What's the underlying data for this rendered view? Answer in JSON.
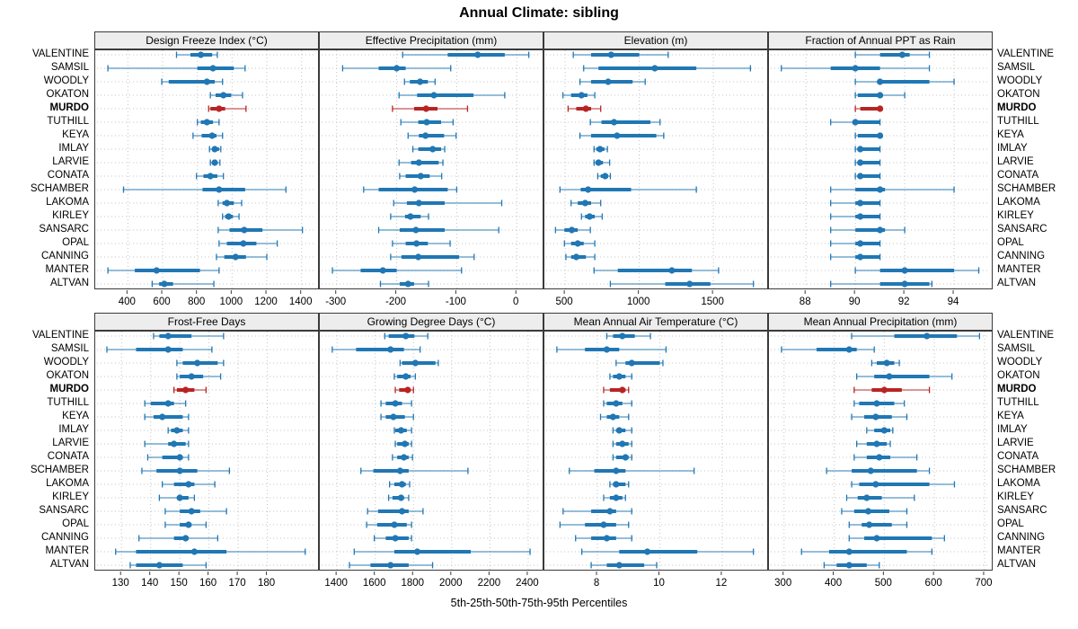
{
  "title": "Annual Climate: sibling",
  "caption": "5th-25th-50th-75th-95th Percentiles",
  "highlight_site": "MURDO",
  "colors": {
    "series": "#2077b4",
    "highlight": "#b82423",
    "grid": "#c4c4c4",
    "strip_bg": "#ededed",
    "border": "#3a3a3a"
  },
  "sites": [
    "VALENTINE",
    "SAMSIL",
    "WOODLY",
    "OKATON",
    "MURDO",
    "TUTHILL",
    "KEYA",
    "IMLAY",
    "LARVIE",
    "CONATA",
    "SCHAMBER",
    "LAKOMA",
    "KIRLEY",
    "SANSARC",
    "OPAL",
    "CANNING",
    "MANTER",
    "ALTVAN"
  ],
  "chart_data": {
    "type": "percentile-dotplot",
    "percentile_labels": [
      "5th",
      "25th",
      "50th",
      "75th",
      "95th"
    ],
    "legend_position": "none",
    "grid": "dotted",
    "panels": [
      {
        "title": "Design Freeze Index (°C)",
        "row": 0,
        "col": 0,
        "ticks": [
          400,
          600,
          800,
          1000,
          1200,
          1400
        ],
        "range": [
          212,
          1505
        ],
        "values": [
          [
            680,
            760,
            820,
            885,
            915
          ],
          [
            285,
            800,
            890,
            1010,
            1075
          ],
          [
            595,
            635,
            855,
            900,
            945
          ],
          [
            875,
            905,
            950,
            995,
            1060
          ],
          [
            865,
            875,
            925,
            960,
            1080
          ],
          [
            800,
            820,
            855,
            890,
            925
          ],
          [
            775,
            825,
            885,
            910,
            945
          ],
          [
            870,
            885,
            900,
            925,
            935
          ],
          [
            875,
            885,
            900,
            915,
            930
          ],
          [
            795,
            835,
            875,
            915,
            950
          ],
          [
            375,
            830,
            925,
            1075,
            1310
          ],
          [
            920,
            945,
            970,
            1010,
            1055
          ],
          [
            945,
            960,
            980,
            1005,
            1040
          ],
          [
            920,
            985,
            1070,
            1175,
            1405
          ],
          [
            925,
            970,
            1065,
            1140,
            1260
          ],
          [
            910,
            955,
            1020,
            1080,
            1200
          ],
          [
            285,
            440,
            565,
            815,
            925
          ],
          [
            540,
            580,
            610,
            660,
            895
          ]
        ]
      },
      {
        "title": "Effective Precipitation (mm)",
        "row": 0,
        "col": 1,
        "ticks": [
          -300,
          -200,
          -100,
          0
        ],
        "range": [
          -328,
          46
        ],
        "values": [
          [
            -190,
            -115,
            -65,
            -20,
            20
          ],
          [
            -290,
            -230,
            -200,
            -185,
            -110
          ],
          [
            -187,
            -178,
            -161,
            -148,
            -136
          ],
          [
            -196,
            -166,
            -138,
            -72,
            -20
          ],
          [
            -207,
            -171,
            -151,
            -132,
            -82
          ],
          [
            -193,
            -164,
            -150,
            -126,
            -106
          ],
          [
            -181,
            -163,
            -152,
            -121,
            -101
          ],
          [
            -173,
            -164,
            -140,
            -126,
            -120
          ],
          [
            -196,
            -176,
            -163,
            -130,
            -123
          ],
          [
            -195,
            -185,
            -160,
            -145,
            -125
          ],
          [
            -255,
            -230,
            -170,
            -115,
            -100
          ],
          [
            -205,
            -183,
            -163,
            -120,
            -25
          ],
          [
            -210,
            -186,
            -177,
            -160,
            -147
          ],
          [
            -230,
            -195,
            -168,
            -120,
            -30
          ],
          [
            -207,
            -185,
            -167,
            -148,
            -111
          ],
          [
            -210,
            -192,
            -164,
            -96,
            -71
          ],
          [
            -307,
            -260,
            -223,
            -200,
            -92
          ],
          [
            -227,
            -195,
            -181,
            -171,
            -147
          ]
        ]
      },
      {
        "title": "Elevation (m)",
        "row": 0,
        "col": 2,
        "ticks": [
          500,
          1000,
          1500
        ],
        "range": [
          360,
          1875
        ],
        "values": [
          [
            555,
            675,
            810,
            1000,
            1195
          ],
          [
            625,
            725,
            1105,
            1385,
            1750
          ],
          [
            600,
            675,
            790,
            955,
            1040
          ],
          [
            485,
            540,
            610,
            650,
            700
          ],
          [
            520,
            575,
            640,
            675,
            740
          ],
          [
            670,
            745,
            830,
            1075,
            1140
          ],
          [
            600,
            675,
            850,
            1115,
            1165
          ],
          [
            695,
            710,
            735,
            765,
            785
          ],
          [
            695,
            705,
            725,
            755,
            800
          ],
          [
            720,
            740,
            770,
            790,
            805
          ],
          [
            465,
            605,
            655,
            945,
            1385
          ],
          [
            540,
            585,
            635,
            675,
            740
          ],
          [
            610,
            635,
            665,
            700,
            750
          ],
          [
            435,
            495,
            545,
            585,
            670
          ],
          [
            495,
            540,
            585,
            625,
            700
          ],
          [
            505,
            540,
            575,
            640,
            700
          ],
          [
            695,
            855,
            1220,
            1355,
            1535
          ],
          [
            805,
            1175,
            1340,
            1480,
            1770
          ]
        ]
      },
      {
        "title": "Fraction of Annual PPT as Rain",
        "row": 0,
        "col": 3,
        "ticks": [
          88,
          90,
          92,
          94
        ],
        "range": [
          86.5,
          95.6
        ],
        "values": [
          [
            90,
            91,
            91.9,
            92.2,
            93
          ],
          [
            87,
            89,
            90,
            91,
            93
          ],
          [
            90,
            90.9,
            91,
            93,
            94
          ],
          [
            90,
            90.1,
            91,
            91.1,
            92
          ],
          [
            90,
            90.2,
            91,
            91,
            91
          ],
          [
            89,
            90,
            90,
            91,
            91
          ],
          [
            90,
            90.1,
            91,
            91,
            91
          ],
          [
            90,
            90.1,
            90.2,
            91,
            91
          ],
          [
            90,
            90.1,
            90.2,
            91,
            91
          ],
          [
            90,
            90.1,
            90.2,
            91,
            91
          ],
          [
            89,
            90,
            91,
            91.2,
            94
          ],
          [
            89,
            90,
            90.2,
            91,
            91
          ],
          [
            89,
            90,
            90.2,
            91,
            91
          ],
          [
            89,
            90,
            91,
            91.2,
            92
          ],
          [
            89,
            90,
            90.2,
            91,
            91
          ],
          [
            89,
            90,
            90.2,
            91,
            91
          ],
          [
            90,
            91,
            92,
            94,
            95
          ],
          [
            89,
            91,
            92,
            93,
            93.1
          ]
        ]
      },
      {
        "title": "Frost-Free Days",
        "row": 1,
        "col": 0,
        "ticks": [
          130,
          140,
          150,
          160,
          170,
          180
        ],
        "range": [
          121,
          198
        ],
        "values": [
          [
            141,
            143,
            146,
            154,
            165
          ],
          [
            125,
            135,
            146,
            151,
            161
          ],
          [
            149,
            151,
            156,
            163,
            165
          ],
          [
            149,
            150,
            154,
            158,
            164
          ],
          [
            148,
            149,
            152,
            155,
            159
          ],
          [
            138,
            140,
            146,
            148,
            152
          ],
          [
            138,
            141,
            144,
            151,
            153
          ],
          [
            146,
            147,
            149,
            151,
            153
          ],
          [
            138,
            146,
            148,
            152,
            153
          ],
          [
            139,
            144,
            150,
            151,
            153
          ],
          [
            137,
            142,
            150,
            156,
            167
          ],
          [
            144,
            148,
            153,
            155,
            162
          ],
          [
            143,
            149,
            150,
            153,
            155
          ],
          [
            145,
            150,
            154,
            157,
            166
          ],
          [
            145,
            150,
            153,
            154,
            159
          ],
          [
            136,
            148,
            152,
            153,
            163
          ],
          [
            128,
            135,
            155,
            166,
            193
          ],
          [
            133,
            135,
            143,
            151,
            159
          ]
        ]
      },
      {
        "title": "Growing Degree Days (°C)",
        "row": 1,
        "col": 1,
        "ticks": [
          1400,
          1600,
          1800,
          2000,
          2200,
          2400
        ],
        "range": [
          1310,
          2485
        ],
        "values": [
          [
            1650,
            1670,
            1760,
            1805,
            1875
          ],
          [
            1375,
            1500,
            1680,
            1750,
            1835
          ],
          [
            1730,
            1740,
            1810,
            1915,
            1930
          ],
          [
            1700,
            1715,
            1760,
            1785,
            1810
          ],
          [
            1705,
            1725,
            1770,
            1785,
            1800
          ],
          [
            1630,
            1655,
            1705,
            1740,
            1790
          ],
          [
            1630,
            1655,
            1695,
            1755,
            1800
          ],
          [
            1700,
            1705,
            1735,
            1765,
            1790
          ],
          [
            1705,
            1715,
            1755,
            1775,
            1790
          ],
          [
            1690,
            1715,
            1750,
            1775,
            1795
          ],
          [
            1525,
            1590,
            1730,
            1775,
            2085
          ],
          [
            1675,
            1700,
            1740,
            1760,
            1780
          ],
          [
            1670,
            1690,
            1735,
            1750,
            1775
          ],
          [
            1560,
            1615,
            1740,
            1775,
            1850
          ],
          [
            1555,
            1610,
            1700,
            1765,
            1790
          ],
          [
            1595,
            1655,
            1705,
            1775,
            1790
          ],
          [
            1490,
            1700,
            1820,
            2100,
            2410
          ],
          [
            1465,
            1575,
            1680,
            1775,
            1900
          ]
        ]
      },
      {
        "title": "Mean Annual Air Temperature (°C)",
        "row": 1,
        "col": 2,
        "ticks": [
          8,
          10,
          12
        ],
        "range": [
          6.3,
          13.5
        ],
        "values": [
          [
            8.3,
            8.5,
            8.8,
            9.2,
            9.7
          ],
          [
            6.7,
            7.6,
            8.3,
            8.7,
            10.2
          ],
          [
            8.6,
            8.9,
            9.1,
            10.0,
            10.1
          ],
          [
            8.4,
            8.5,
            8.7,
            8.9,
            9.1
          ],
          [
            8.2,
            8.4,
            8.8,
            8.9,
            9.0
          ],
          [
            8.2,
            8.3,
            8.6,
            8.8,
            9.1
          ],
          [
            8.1,
            8.3,
            8.5,
            8.7,
            9.0
          ],
          [
            8.5,
            8.6,
            8.7,
            8.9,
            9.1
          ],
          [
            8.5,
            8.6,
            8.8,
            9.0,
            9.1
          ],
          [
            8.5,
            8.6,
            8.9,
            9.0,
            9.1
          ],
          [
            7.1,
            7.9,
            8.6,
            8.9,
            11.1
          ],
          [
            8.4,
            8.5,
            8.6,
            8.9,
            9.0
          ],
          [
            8.2,
            8.4,
            8.6,
            8.8,
            8.9
          ],
          [
            6.9,
            7.8,
            8.4,
            8.6,
            9.1
          ],
          [
            6.8,
            7.6,
            8.2,
            8.6,
            9.0
          ],
          [
            7.3,
            7.8,
            8.3,
            8.6,
            9.1
          ],
          [
            7.5,
            8.7,
            9.6,
            11.2,
            13.0
          ],
          [
            7.8,
            8.3,
            8.7,
            9.5,
            9.9
          ]
        ]
      },
      {
        "title": "Mean Annual Precipitation (mm)",
        "row": 1,
        "col": 3,
        "ticks": [
          300,
          400,
          500,
          600,
          700
        ],
        "range": [
          270,
          718
        ],
        "values": [
          [
            435,
            520,
            585,
            645,
            690
          ],
          [
            295,
            365,
            430,
            445,
            480
          ],
          [
            475,
            485,
            505,
            520,
            530
          ],
          [
            445,
            480,
            510,
            590,
            635
          ],
          [
            440,
            475,
            500,
            535,
            590
          ],
          [
            440,
            450,
            485,
            520,
            540
          ],
          [
            435,
            460,
            483,
            515,
            545
          ],
          [
            465,
            480,
            500,
            512,
            517
          ],
          [
            445,
            465,
            485,
            505,
            512
          ],
          [
            440,
            465,
            490,
            512,
            565
          ],
          [
            385,
            435,
            473,
            565,
            590
          ],
          [
            435,
            450,
            483,
            590,
            640
          ],
          [
            425,
            447,
            465,
            495,
            560
          ],
          [
            415,
            440,
            468,
            510,
            545
          ],
          [
            430,
            455,
            470,
            515,
            545
          ],
          [
            430,
            460,
            485,
            595,
            620
          ],
          [
            335,
            390,
            430,
            545,
            595
          ],
          [
            380,
            405,
            430,
            465,
            490
          ]
        ]
      }
    ]
  },
  "layout_note": "2x4 trellis of site percentile intervals; MURDO highlighted"
}
